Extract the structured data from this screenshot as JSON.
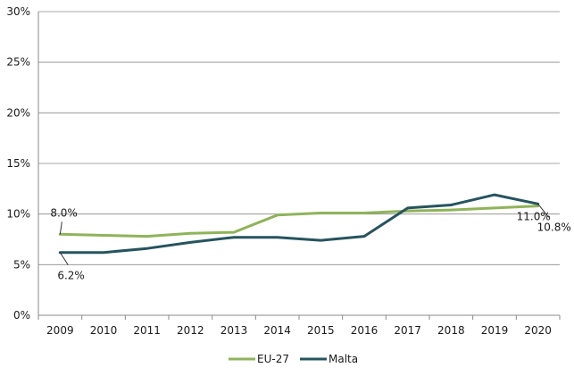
{
  "chart_data": {
    "type": "line",
    "categories": [
      "2009",
      "2010",
      "2011",
      "2012",
      "2013",
      "2014",
      "2015",
      "2016",
      "2017",
      "2018",
      "2019",
      "2020"
    ],
    "series": [
      {
        "name": "EU-27",
        "color": "#8fb35a",
        "values": [
          8.0,
          7.9,
          7.8,
          8.1,
          8.2,
          9.9,
          10.1,
          10.1,
          10.3,
          10.4,
          10.6,
          10.8
        ]
      },
      {
        "name": "Malta",
        "color": "#26545e",
        "values": [
          6.2,
          6.2,
          6.6,
          7.2,
          7.7,
          7.7,
          7.4,
          7.8,
          10.6,
          10.9,
          11.9,
          11.0
        ]
      }
    ],
    "y_ticks": [
      "0%",
      "5%",
      "10%",
      "15%",
      "20%",
      "25%",
      "30%"
    ],
    "ylim": [
      0,
      30
    ],
    "grid": true,
    "legend_position": "bottom-center",
    "annotations": {
      "eu_start": "8.0%",
      "malta_start": "6.2%",
      "malta_end": "11.0%",
      "eu_end": "10.8%"
    }
  }
}
